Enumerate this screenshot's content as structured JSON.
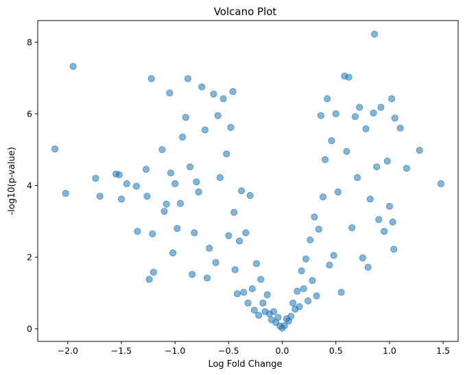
{
  "chart_data": {
    "type": "scatter",
    "title": "Volcano Plot",
    "xlabel": "Log Fold Change",
    "ylabel": "-log10(p-value)",
    "xlim": [
      -2.28,
      1.64
    ],
    "ylim": [
      -0.35,
      8.6
    ],
    "xticks": [
      -2.0,
      -1.5,
      -1.0,
      -0.5,
      0.0,
      0.5,
      1.0,
      1.5
    ],
    "xtick_labels": [
      "−2.0",
      "−1.5",
      "−1.0",
      "−0.5",
      "0.0",
      "0.5",
      "1.0",
      "1.5"
    ],
    "yticks": [
      0,
      2,
      4,
      6,
      8
    ],
    "ytick_labels": [
      "0",
      "2",
      "4",
      "6",
      "8"
    ],
    "grid": false,
    "marker_color": "#1f77b4",
    "marker_alpha": 0.55,
    "series": [
      {
        "x": [
          -2.12,
          -2.02,
          -1.95,
          -1.74,
          -1.7,
          -1.55,
          -1.52,
          -1.5,
          -1.45,
          -1.36,
          -1.35,
          -1.27,
          -1.26,
          -1.24,
          -1.22,
          -1.21,
          -1.2,
          -1.12,
          -1.1,
          -1.08,
          -1.05,
          -1.04,
          -1.02,
          -1.0,
          -0.98,
          -0.95,
          -0.93,
          -0.9,
          -0.88,
          -0.86,
          -0.84,
          -0.82,
          -0.8,
          -0.78,
          -0.75,
          -0.72,
          -0.7,
          -0.68,
          -0.64,
          -0.62,
          -0.6,
          -0.58,
          -0.55,
          -0.52,
          -0.5,
          -0.48,
          -0.46,
          -0.45,
          -0.44,
          -0.42,
          -0.4,
          -0.38,
          -0.36,
          -0.34,
          -0.32,
          -0.3,
          -0.28,
          -0.26,
          -0.24,
          -0.22,
          -0.2,
          -0.18,
          -0.16,
          -0.14,
          -0.12,
          -0.1,
          -0.08,
          -0.06,
          -0.04,
          -0.02,
          0.0,
          0.02,
          0.04,
          0.06,
          0.08,
          0.1,
          0.12,
          0.14,
          0.16,
          0.18,
          0.2,
          0.22,
          0.24,
          0.26,
          0.28,
          0.3,
          0.32,
          0.34,
          0.36,
          0.38,
          0.4,
          0.42,
          0.44,
          0.46,
          0.48,
          0.5,
          0.52,
          0.55,
          0.58,
          0.6,
          0.62,
          0.65,
          0.68,
          0.7,
          0.72,
          0.75,
          0.78,
          0.8,
          0.82,
          0.85,
          0.86,
          0.88,
          0.9,
          0.92,
          0.95,
          0.98,
          1.0,
          1.02,
          1.03,
          1.04,
          1.05,
          1.1,
          1.16,
          1.28,
          1.48
        ],
        "y": [
          5.02,
          3.78,
          7.32,
          4.2,
          3.7,
          4.32,
          4.3,
          3.62,
          4.05,
          3.98,
          2.72,
          4.45,
          3.7,
          1.38,
          6.98,
          2.65,
          1.58,
          5.0,
          3.28,
          3.48,
          6.58,
          4.35,
          2.12,
          4.05,
          2.8,
          3.5,
          5.35,
          5.9,
          6.98,
          4.52,
          1.52,
          2.68,
          4.1,
          3.82,
          6.75,
          5.55,
          1.42,
          2.25,
          6.55,
          1.85,
          5.95,
          4.22,
          6.42,
          4.88,
          2.6,
          5.62,
          6.62,
          3.25,
          1.65,
          0.98,
          2.45,
          3.85,
          1.02,
          2.68,
          0.72,
          3.72,
          1.12,
          0.52,
          1.82,
          0.38,
          1.38,
          0.72,
          0.48,
          0.95,
          0.42,
          0.25,
          0.48,
          0.18,
          0.32,
          0.08,
          0.02,
          0.09,
          0.28,
          0.22,
          0.35,
          0.72,
          0.55,
          1.05,
          0.62,
          1.62,
          1.12,
          1.95,
          0.78,
          2.48,
          1.35,
          3.12,
          0.92,
          2.78,
          5.95,
          3.68,
          4.72,
          6.42,
          1.78,
          5.25,
          2.05,
          6.0,
          3.82,
          1.02,
          7.05,
          4.95,
          7.02,
          2.82,
          5.92,
          4.22,
          6.18,
          1.98,
          5.58,
          1.72,
          3.62,
          6.02,
          8.22,
          4.52,
          3.05,
          6.18,
          2.72,
          4.68,
          3.42,
          6.42,
          2.98,
          2.22,
          5.88,
          5.6,
          4.48,
          4.98,
          4.05
        ]
      }
    ]
  }
}
